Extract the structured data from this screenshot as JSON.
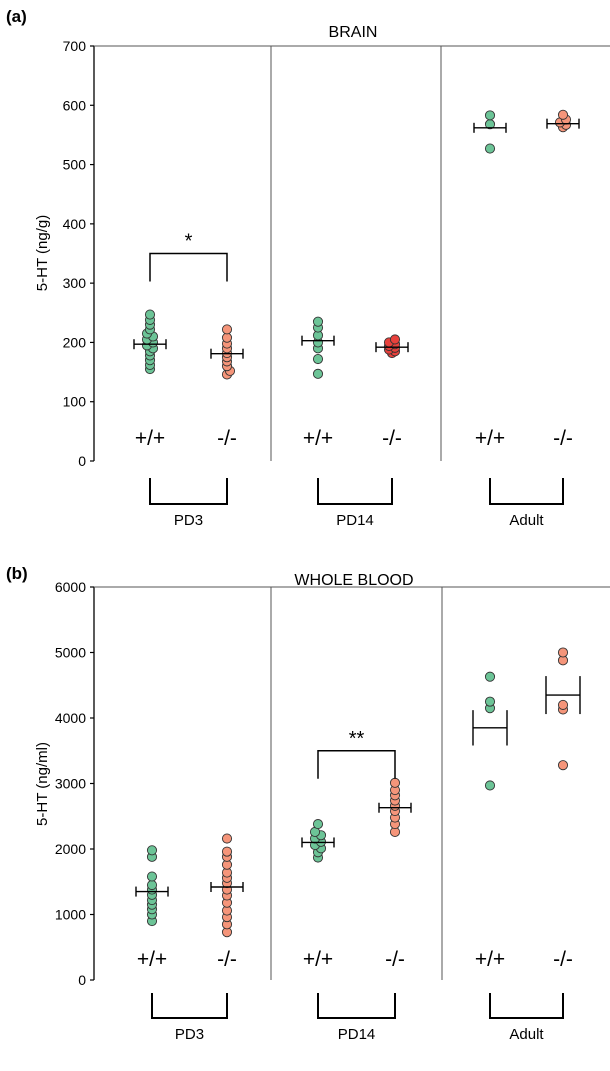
{
  "chart_data": [
    {
      "type": "scatter",
      "panel_label": "(a)",
      "title": "BRAIN",
      "ylabel": "5-HT (ng/g)",
      "ylim": [
        0,
        700
      ],
      "yticks": [
        0,
        100,
        200,
        300,
        400,
        500,
        600,
        700
      ],
      "groups": [
        {
          "label": "PD3",
          "genotypes": [
            {
              "label": "+/+",
              "color": "#6cc497",
              "mean": 197,
              "sem": 10,
              "values": [
                155,
                162,
                170,
                178,
                185,
                190,
                195,
                200,
                205,
                210,
                215,
                222,
                230,
                238,
                247
              ]
            },
            {
              "label": "-/-",
              "color": "#f5957a",
              "mean": 181,
              "sem": 9,
              "values": [
                146,
                152,
                160,
                168,
                175,
                182,
                190,
                198,
                208,
                222
              ]
            }
          ],
          "significance": {
            "text": "*",
            "y": 350
          }
        },
        {
          "label": "PD14",
          "genotypes": [
            {
              "label": "+/+",
              "color": "#6cc497",
              "mean": 203,
              "sem": 10,
              "values": [
                147,
                172,
                190,
                200,
                212,
                225,
                235
              ]
            },
            {
              "label": "-/-",
              "color": "#e8413c",
              "mean": 192,
              "sem": 4,
              "values": [
                182,
                185,
                188,
                191,
                194,
                197,
                200,
                205
              ]
            }
          ]
        },
        {
          "label": "Adult",
          "genotypes": [
            {
              "label": "+/+",
              "color": "#6cc497",
              "mean": 562,
              "sem": 7,
              "values": [
                527,
                568,
                583
              ]
            },
            {
              "label": "-/-",
              "color": "#f5957a",
              "mean": 569,
              "sem": 4,
              "values": [
                563,
                567,
                571,
                576,
                584
              ]
            }
          ]
        }
      ]
    },
    {
      "type": "scatter",
      "panel_label": "(b)",
      "title": "WHOLE BLOOD",
      "ylabel": "5-HT (ng/ml)",
      "ylim": [
        0,
        6000
      ],
      "yticks": [
        0,
        1000,
        2000,
        3000,
        4000,
        5000,
        6000
      ],
      "groups": [
        {
          "label": "PD3",
          "genotypes": [
            {
              "label": "+/+",
              "color": "#6cc497",
              "mean": 1350,
              "sem": 80,
              "values": [
                900,
                1000,
                1080,
                1150,
                1220,
                1300,
                1380,
                1450,
                1580,
                1880,
                1980
              ]
            },
            {
              "label": "-/-",
              "color": "#f5957a",
              "mean": 1420,
              "sem": 90,
              "values": [
                730,
                850,
                960,
                1060,
                1180,
                1290,
                1380,
                1480,
                1560,
                1640,
                1760,
                1880,
                1960,
                2160
              ]
            }
          ]
        },
        {
          "label": "PD14",
          "genotypes": [
            {
              "label": "+/+",
              "color": "#6cc497",
              "mean": 2100,
              "sem": 40,
              "values": [
                1870,
                1950,
                2010,
                2060,
                2110,
                2160,
                2210,
                2260,
                2380
              ]
            },
            {
              "label": "-/-",
              "color": "#f5957a",
              "mean": 2630,
              "sem": 70,
              "values": [
                2260,
                2380,
                2480,
                2580,
                2660,
                2740,
                2820,
                2900,
                3010
              ]
            }
          ],
          "significance": {
            "text": "**",
            "y": 3500
          }
        },
        {
          "label": "Adult",
          "genotypes": [
            {
              "label": "+/+",
              "color": "#6cc497",
              "mean": 3850,
              "sem": 270,
              "values": [
                2970,
                4150,
                4250,
                4630
              ]
            },
            {
              "label": "-/-",
              "color": "#f5957a",
              "mean": 4350,
              "sem": 290,
              "values": [
                3280,
                4130,
                4200,
                4880,
                5000
              ]
            }
          ]
        }
      ]
    }
  ]
}
